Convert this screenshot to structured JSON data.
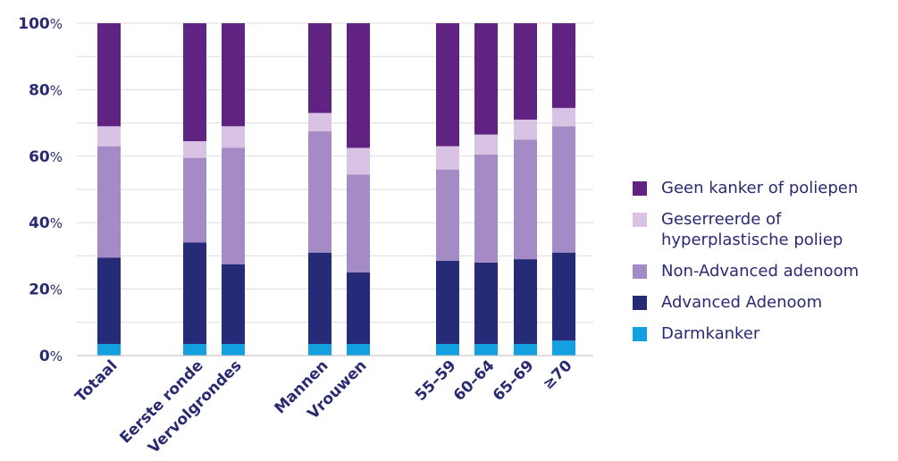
{
  "chart_data": {
    "type": "bar",
    "stacked": true,
    "categories": [
      "Totaal",
      "Eerste ronde",
      "Vervolgrondes",
      "Mannen",
      "Vrouwen",
      "55–59",
      "60–64",
      "65–69",
      "≥70"
    ],
    "y_ticks": [
      {
        "num": "0",
        "unit": "%"
      },
      {
        "num": "20",
        "unit": "%"
      },
      {
        "num": "40",
        "unit": "%"
      },
      {
        "num": "60",
        "unit": "%"
      },
      {
        "num": "80",
        "unit": "%"
      },
      {
        "num": "100",
        "unit": "%"
      }
    ],
    "ylim": [
      0,
      100
    ],
    "grid": true,
    "legend_position": "right",
    "series": [
      {
        "name": "Darmkanker",
        "color": "#12a0e0",
        "values": [
          3.5,
          3.5,
          3.5,
          3.5,
          3.5,
          3.5,
          3.5,
          3.5,
          4.5
        ]
      },
      {
        "name": "Advanced Adenoom",
        "color": "#262b78",
        "values": [
          26,
          30.5,
          24,
          27.5,
          21.5,
          25,
          24.5,
          25.5,
          26.5
        ]
      },
      {
        "name": "Non-Advanced adenoom",
        "color": "#a58bc5",
        "values": [
          33.5,
          25.5,
          35,
          36.5,
          29.5,
          27.5,
          32.5,
          36,
          38
        ]
      },
      {
        "name": "Geserreerde of hyperplastische poliep",
        "color": "#d8c3e4",
        "values": [
          6,
          5,
          6.5,
          5.5,
          8,
          7,
          6,
          6,
          5.5
        ]
      },
      {
        "name": "Geen kanker of poliepen",
        "color": "#612382",
        "values": [
          31,
          35.5,
          31,
          27,
          37.5,
          37,
          33.5,
          29,
          25.5
        ]
      }
    ]
  },
  "legend": {
    "items": [
      {
        "lines": [
          "Geen kanker of poliepen"
        ],
        "color": "#612382"
      },
      {
        "lines": [
          "Geserreerde of",
          "hyperplastische poliep"
        ],
        "color": "#d8c3e4"
      },
      {
        "lines": [
          "Non-Advanced adenoom"
        ],
        "color": "#a58bc5"
      },
      {
        "lines": [
          "Advanced Adenoom"
        ],
        "color": "#262b78"
      },
      {
        "lines": [
          "Darmkanker"
        ],
        "color": "#12a0e0"
      }
    ]
  }
}
